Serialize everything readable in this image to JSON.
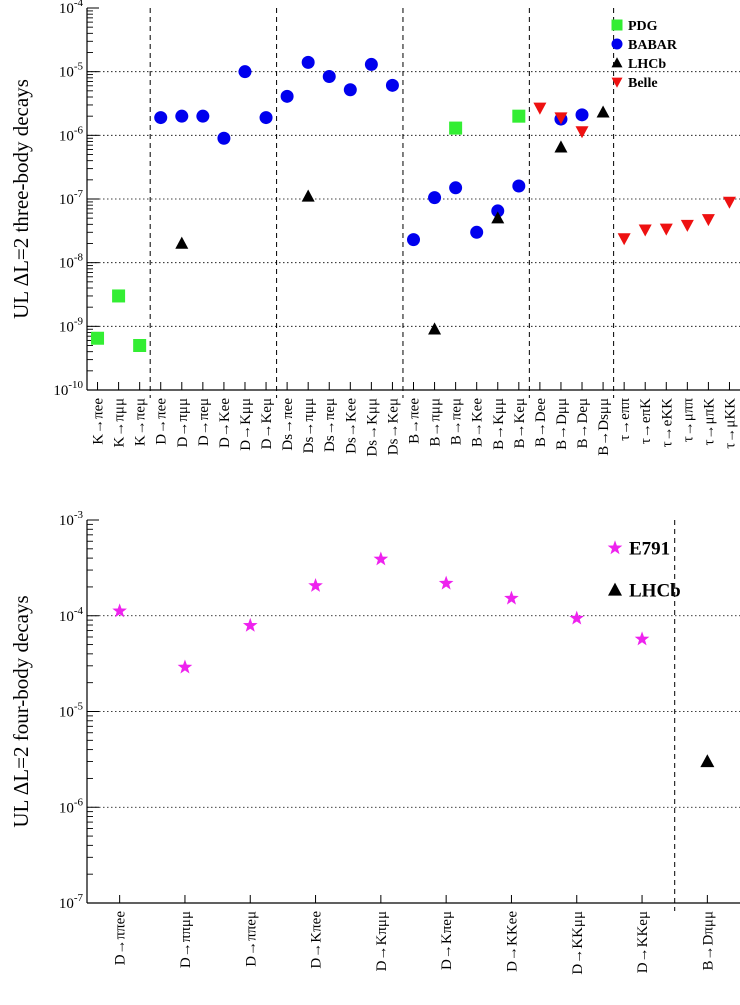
{
  "chart_data": [
    {
      "type": "scatter",
      "ylabel": "UL ΔL=2 three-body decays",
      "yscale": "log",
      "ylim": [
        1e-10,
        0.0001
      ],
      "y_ticks": [
        {
          "value": 1e-10,
          "label": "10-10"
        },
        {
          "value": 1e-09,
          "label": "10-9"
        },
        {
          "value": 1e-08,
          "label": "10-8"
        },
        {
          "value": 1e-07,
          "label": "10-7"
        },
        {
          "value": 1e-06,
          "label": "10-6"
        },
        {
          "value": 1e-05,
          "label": "10-5"
        },
        {
          "value": 0.0001,
          "label": "10-4"
        }
      ],
      "grid": "horizontal dotted",
      "legend_position": "top-right",
      "categories": [
        "K→πee",
        "K→πμμ",
        "K→πeμ",
        "D→πee",
        "D→πμμ",
        "D→πeμ",
        "D→Kee",
        "D→Kμμ",
        "D→Keμ",
        "Ds→πee",
        "Ds→πμμ",
        "Ds→πeμ",
        "Ds→Kee",
        "Ds→Kμμ",
        "Ds→Keμ",
        "B→πee",
        "B→πμμ",
        "B→πeμ",
        "B→Kee",
        "B→Kμμ",
        "B→Keμ",
        "B→Dee",
        "B→Dμμ",
        "B→Deμ",
        "B→Dsμμ",
        "τ→eππ",
        "τ→eπK",
        "τ→eKK",
        "τ→μππ",
        "τ→μπK",
        "τ→μKK"
      ],
      "group_separators_after_index": [
        2,
        8,
        14,
        20,
        24
      ],
      "series": [
        {
          "name": "PDG",
          "marker": "square",
          "color": "#33ee33",
          "points": [
            [
              0,
              6.5e-10
            ],
            [
              1,
              3e-09
            ],
            [
              2,
              5e-10
            ],
            [
              17,
              1.3e-06
            ],
            [
              20,
              2e-06
            ]
          ]
        },
        {
          "name": "BABAR",
          "marker": "circle",
          "color": "#0000ee",
          "points": [
            [
              3,
              1.9e-06
            ],
            [
              4,
              2e-06
            ],
            [
              5,
              2e-06
            ],
            [
              6,
              9e-07
            ],
            [
              7,
              1e-05
            ],
            [
              8,
              1.9e-06
            ],
            [
              9,
              4.1e-06
            ],
            [
              10,
              1.4e-05
            ],
            [
              11,
              8.4e-06
            ],
            [
              12,
              5.2e-06
            ],
            [
              13,
              1.3e-05
            ],
            [
              14,
              6.1e-06
            ],
            [
              15,
              2.3e-08
            ],
            [
              16,
              1.05e-07
            ],
            [
              17,
              1.5e-07
            ],
            [
              18,
              3e-08
            ],
            [
              19,
              6.5e-08
            ],
            [
              20,
              1.6e-07
            ],
            [
              22,
              1.8e-06
            ],
            [
              23,
              2.1e-06
            ]
          ]
        },
        {
          "name": "LHCb",
          "marker": "triangle-up",
          "color": "#000000",
          "points": [
            [
              4,
              2e-08
            ],
            [
              10,
              1.1e-07
            ],
            [
              16,
              9e-10
            ],
            [
              19,
              5e-08
            ],
            [
              22,
              6.5e-07
            ],
            [
              24,
              2.3e-06
            ]
          ]
        },
        {
          "name": "Belle",
          "marker": "triangle-down",
          "color": "#ee1111",
          "points": [
            [
              21,
              2.7e-06
            ],
            [
              22,
              1.9e-06
            ],
            [
              23,
              1.15e-06
            ],
            [
              25,
              2.4e-08
            ],
            [
              26,
              3.3e-08
            ],
            [
              27,
              3.4e-08
            ],
            [
              28,
              3.9e-08
            ],
            [
              29,
              4.8e-08
            ],
            [
              30,
              9e-08
            ]
          ]
        }
      ]
    },
    {
      "type": "scatter",
      "ylabel": "UL ΔL=2 four-body decays",
      "yscale": "log",
      "ylim": [
        1e-07,
        0.001
      ],
      "y_ticks": [
        {
          "value": 1e-07,
          "label": "10-7"
        },
        {
          "value": 1e-06,
          "label": "10-6"
        },
        {
          "value": 1e-05,
          "label": "10-5"
        },
        {
          "value": 0.0001,
          "label": "10-4"
        },
        {
          "value": 0.001,
          "label": "10-3"
        }
      ],
      "grid": "horizontal dotted",
      "legend_position": "top-right",
      "categories": [
        "D→ππee",
        "D→ππμμ",
        "D→ππeμ",
        "D→Kπee",
        "D→Kπμμ",
        "D→Kπeμ",
        "D→KKee",
        "D→KKμμ",
        "D→KKeμ",
        "B→Dπμμ"
      ],
      "group_separators_after_index": [
        8
      ],
      "series": [
        {
          "name": "E791",
          "marker": "star",
          "color": "#ee22ee",
          "points": [
            [
              0,
              0.000112
            ],
            [
              1,
              2.9e-05
            ],
            [
              2,
              7.9e-05
            ],
            [
              3,
              0.000206
            ],
            [
              4,
              0.00039
            ],
            [
              5,
              0.000218
            ],
            [
              6,
              0.000152
            ],
            [
              7,
              9.4e-05
            ],
            [
              8,
              5.7e-05
            ]
          ]
        },
        {
          "name": "LHCb",
          "marker": "triangle-up",
          "color": "#000000",
          "points": [
            [
              9,
              3e-06
            ]
          ]
        }
      ]
    }
  ]
}
